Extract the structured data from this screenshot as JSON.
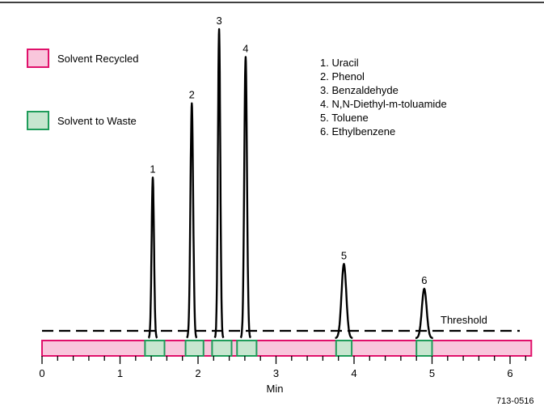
{
  "chart_data": {
    "type": "line",
    "title": "",
    "xlabel": "Min",
    "ylabel": "",
    "xlim": [
      0,
      6.2
    ],
    "xticks": [
      "0",
      "1",
      "2",
      "3",
      "4",
      "5",
      "6"
    ],
    "threshold_label": "Threshold",
    "legend": [
      {
        "label": "Solvent Recycled",
        "color": "#f9c6dc",
        "edge": "#e0116b"
      },
      {
        "label": "Solvent to Waste",
        "color": "#c7e6cf",
        "edge": "#1f9c5a"
      }
    ],
    "compounds": [
      "1.   Uracil",
      "2.   Phenol",
      "3.   Benzaldehyde",
      "4.   N,N-Diethyl-m-toluamide",
      "5.   Toluene",
      "6.   Ethylbenzene"
    ],
    "peaks": [
      {
        "label": "1",
        "retention_min": 1.42,
        "relative_height": 0.52,
        "width_min": 0.035
      },
      {
        "label": "2",
        "retention_min": 1.92,
        "relative_height": 0.76,
        "width_min": 0.04
      },
      {
        "label": "3",
        "retention_min": 2.27,
        "relative_height": 1.0,
        "width_min": 0.035
      },
      {
        "label": "4",
        "retention_min": 2.61,
        "relative_height": 0.91,
        "width_min": 0.04
      },
      {
        "label": "5",
        "retention_min": 3.87,
        "relative_height": 0.24,
        "width_min": 0.07
      },
      {
        "label": "6",
        "retention_min": 4.9,
        "relative_height": 0.16,
        "width_min": 0.07
      }
    ],
    "waste_windows_min": [
      [
        1.32,
        1.57
      ],
      [
        1.84,
        2.07
      ],
      [
        2.18,
        2.43
      ],
      [
        2.5,
        2.75
      ],
      [
        3.77,
        3.97
      ],
      [
        4.8,
        5.0
      ]
    ],
    "threshold_relative_height": 0.05
  },
  "figure_code": "713-0516"
}
